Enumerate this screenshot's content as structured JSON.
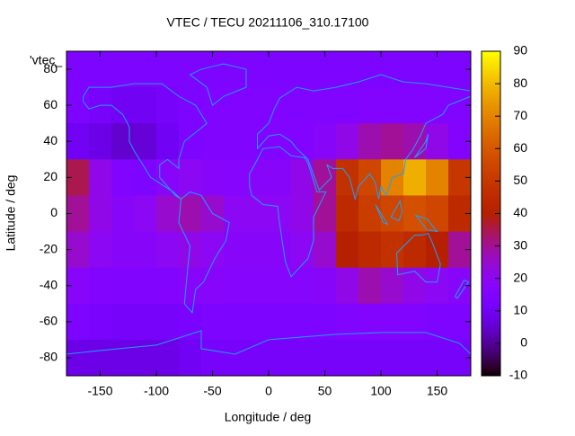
{
  "chart_data": {
    "type": "heatmap",
    "title": "VTEC / TECU 20211106_310.17100",
    "x_label": "Longitude / deg",
    "y_label": "Latitude / deg",
    "legend": "'vtec_",
    "palette": "rgbformulae 7,5,15",
    "x": [
      -170,
      -150,
      -130,
      -110,
      -90,
      -70,
      -50,
      -30,
      -10,
      10,
      30,
      50,
      70,
      90,
      110,
      130,
      150,
      170
    ],
    "y": [
      80,
      60,
      40,
      20,
      0,
      -20,
      -40,
      -60,
      -80
    ],
    "z": [
      [
        14,
        14,
        14,
        14,
        14,
        14,
        14,
        14,
        14,
        14,
        14,
        14,
        14,
        14,
        14,
        14,
        14,
        14
      ],
      [
        14,
        12,
        10,
        10,
        12,
        14,
        15,
        15,
        15,
        15,
        15,
        15,
        15,
        16,
        16,
        16,
        16,
        15
      ],
      [
        10,
        8,
        5,
        6,
        10,
        14,
        15,
        15,
        15,
        16,
        16,
        18,
        22,
        28,
        30,
        28,
        22,
        16
      ],
      [
        35,
        22,
        15,
        14,
        18,
        20,
        18,
        17,
        18,
        18,
        22,
        30,
        48,
        55,
        70,
        78,
        70,
        50
      ],
      [
        30,
        22,
        18,
        20,
        25,
        28,
        25,
        20,
        20,
        20,
        22,
        30,
        45,
        52,
        55,
        58,
        55,
        45
      ],
      [
        25,
        20,
        18,
        18,
        20,
        22,
        20,
        18,
        18,
        18,
        20,
        25,
        40,
        45,
        48,
        45,
        40,
        30
      ],
      [
        18,
        16,
        15,
        15,
        16,
        18,
        18,
        17,
        17,
        17,
        17,
        18,
        22,
        28,
        25,
        22,
        20,
        18
      ],
      [
        14,
        13,
        12,
        12,
        12,
        13,
        14,
        14,
        14,
        14,
        14,
        14,
        15,
        16,
        16,
        15,
        14,
        14
      ],
      [
        8,
        8,
        8,
        8,
        8,
        10,
        12,
        12,
        12,
        12,
        12,
        12,
        12,
        12,
        12,
        12,
        12,
        12
      ]
    ],
    "xlim": [
      -180,
      180
    ],
    "xticks": [
      -150,
      -100,
      -50,
      0,
      50,
      100,
      150
    ],
    "ylim": [
      -90,
      90
    ],
    "yticks": [
      -80,
      -60,
      -40,
      -20,
      0,
      20,
      40,
      60,
      80
    ],
    "zlim": [
      -10,
      90
    ],
    "zticks": [
      -10,
      0,
      10,
      20,
      30,
      40,
      50,
      60,
      70,
      80,
      90
    ]
  }
}
